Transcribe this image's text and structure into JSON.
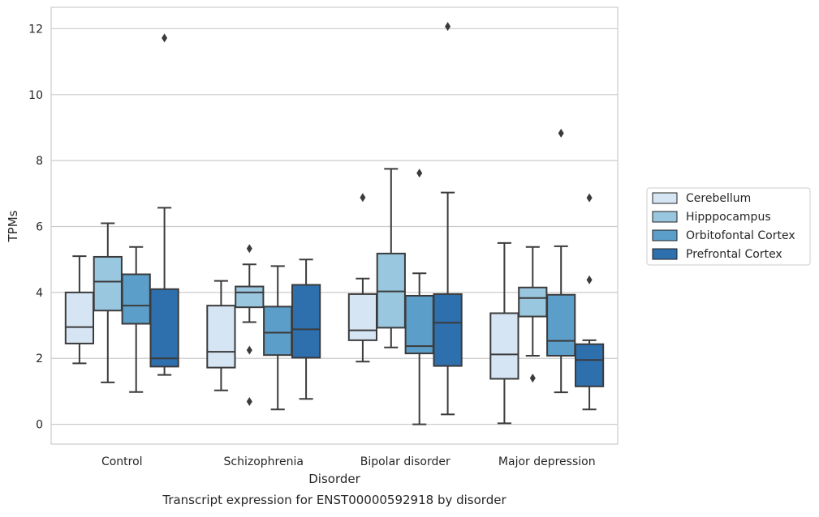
{
  "chart_data": {
    "type": "box",
    "title": "Transcript expression for ENST00000592918 by disorder",
    "xlabel": "Disorder",
    "ylabel": "TPMs",
    "ylim": [
      -0.6,
      12.65
    ],
    "yticks": [
      0,
      2,
      4,
      6,
      8,
      10,
      12
    ],
    "grid": "horizontal",
    "legend_position": "right",
    "categories": [
      "Control",
      "Schizophrenia",
      "Bipolar disorder",
      "Major depression"
    ],
    "series": [
      {
        "name": "Cerebellum",
        "color": "#d6e5f4",
        "boxes": [
          {
            "whislo": 1.85,
            "q1": 2.45,
            "med": 2.95,
            "q3": 4.0,
            "whishi": 5.1,
            "fliers": []
          },
          {
            "whislo": 1.03,
            "q1": 1.72,
            "med": 2.2,
            "q3": 3.6,
            "whishi": 4.35,
            "fliers": []
          },
          {
            "whislo": 1.9,
            "q1": 2.55,
            "med": 2.85,
            "q3": 3.95,
            "whishi": 4.42,
            "fliers": [
              6.88
            ]
          },
          {
            "whislo": 0.03,
            "q1": 1.38,
            "med": 2.12,
            "q3": 3.37,
            "whishi": 5.5,
            "fliers": []
          }
        ]
      },
      {
        "name": "Hipppocampus",
        "color": "#9ac7e0",
        "boxes": [
          {
            "whislo": 1.27,
            "q1": 3.45,
            "med": 4.33,
            "q3": 5.08,
            "whishi": 6.1,
            "fliers": []
          },
          {
            "whislo": 3.1,
            "q1": 3.55,
            "med": 4.0,
            "q3": 4.18,
            "whishi": 4.85,
            "fliers": [
              5.33,
              2.25,
              0.69
            ]
          },
          {
            "whislo": 2.33,
            "q1": 2.93,
            "med": 4.03,
            "q3": 5.18,
            "whishi": 7.75,
            "fliers": []
          },
          {
            "whislo": 2.08,
            "q1": 3.27,
            "med": 3.83,
            "q3": 4.15,
            "whishi": 5.38,
            "fliers": [
              1.4
            ]
          }
        ]
      },
      {
        "name": "Orbitofontal Cortex",
        "color": "#5b9ec9",
        "boxes": [
          {
            "whislo": 0.98,
            "q1": 3.05,
            "med": 3.6,
            "q3": 4.55,
            "whishi": 5.38,
            "fliers": []
          },
          {
            "whislo": 0.45,
            "q1": 2.1,
            "med": 2.78,
            "q3": 3.57,
            "whishi": 4.8,
            "fliers": []
          },
          {
            "whislo": 0.0,
            "q1": 2.15,
            "med": 2.37,
            "q3": 3.9,
            "whishi": 4.58,
            "fliers": [
              7.62
            ]
          },
          {
            "whislo": 0.97,
            "q1": 2.08,
            "med": 2.53,
            "q3": 3.93,
            "whishi": 5.4,
            "fliers": [
              8.83
            ]
          }
        ]
      },
      {
        "name": "Prefrontal Cortex",
        "color": "#2e6fae",
        "boxes": [
          {
            "whislo": 1.5,
            "q1": 1.75,
            "med": 2.0,
            "q3": 4.1,
            "whishi": 6.57,
            "fliers": [
              11.72
            ]
          },
          {
            "whislo": 0.77,
            "q1": 2.02,
            "med": 2.88,
            "q3": 4.23,
            "whishi": 5.0,
            "fliers": []
          },
          {
            "whislo": 0.3,
            "q1": 1.77,
            "med": 3.08,
            "q3": 3.95,
            "whishi": 7.03,
            "fliers": [
              12.07
            ]
          },
          {
            "whislo": 0.45,
            "q1": 1.15,
            "med": 1.95,
            "q3": 2.43,
            "whishi": 2.55,
            "fliers": [
              6.87,
              4.38
            ]
          }
        ]
      }
    ]
  }
}
